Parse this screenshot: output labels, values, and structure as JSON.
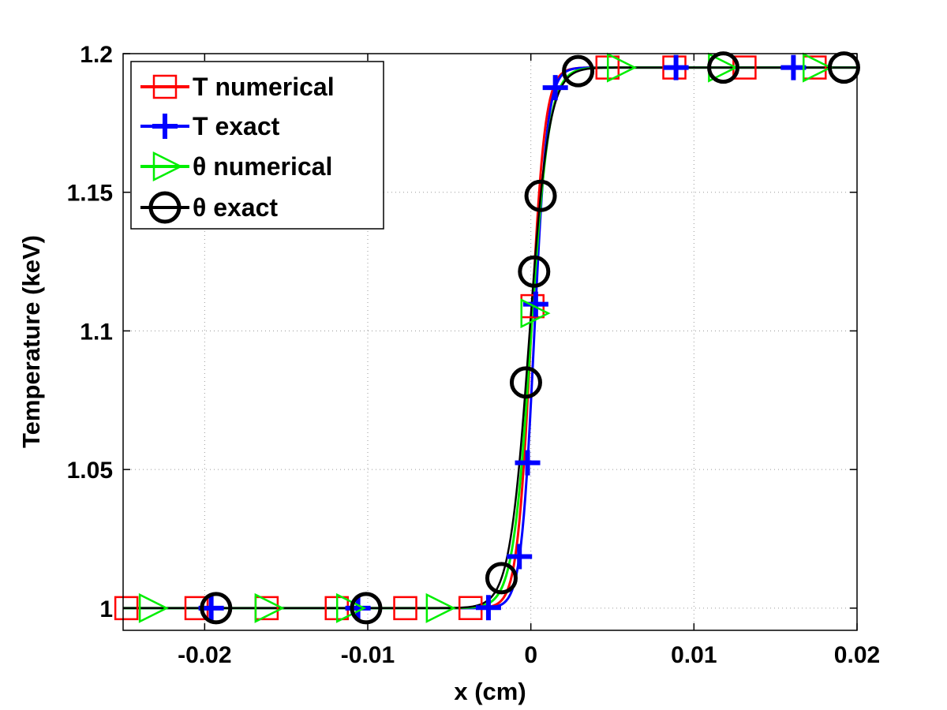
{
  "chart_data": {
    "type": "line",
    "xlabel": "x (cm)",
    "ylabel": "Temperature (keV)",
    "xlim": [
      -0.025,
      0.02
    ],
    "ylim": [
      0.992,
      1.2
    ],
    "xticks": [
      -0.02,
      -0.01,
      0,
      0.01,
      0.02
    ],
    "xtick_labels": [
      "-0.02",
      "-0.01",
      "0",
      "0.01",
      "0.02"
    ],
    "yticks": [
      1.0,
      1.05,
      1.1,
      1.15,
      1.2
    ],
    "ytick_labels": [
      "1",
      "1.05",
      "1.1",
      "1.15",
      "1.2"
    ],
    "grid": true,
    "legend_position": "top-left",
    "series": [
      {
        "name": "T numerical",
        "color": "#ff0000",
        "marker": "square",
        "curve": {
          "low": 1.0,
          "high": 1.195,
          "center": 0.0,
          "width": 0.00085
        },
        "markers_x": [
          -0.0248,
          -0.0205,
          -0.0162,
          -0.0119,
          -0.0077,
          -0.0037,
          0.0001,
          0.0047,
          0.0088,
          0.0131,
          0.0174
        ]
      },
      {
        "name": "T exact",
        "color": "#0000ff",
        "marker": "plus",
        "curve": {
          "low": 1.0,
          "high": 1.195,
          "center": 0.0002,
          "width": 0.0008
        },
        "markers_x": [
          -0.0196,
          -0.0106,
          -0.0026,
          -0.0007,
          -0.0002,
          0.0003,
          0.0015,
          0.0089,
          0.0161
        ]
      },
      {
        "name": "θ numerical",
        "color": "#00ee00",
        "marker": "triangle-right",
        "curve": {
          "low": 1.0,
          "high": 1.195,
          "center": 0.0,
          "width": 0.0011
        },
        "markers_x": [
          -0.0233,
          -0.0162,
          -0.0112,
          -0.0057,
          0.0001,
          0.0054,
          0.0116,
          0.0174
        ]
      },
      {
        "name": "θ exact",
        "color": "#000000",
        "marker": "circle",
        "curve": {
          "low": 1.0,
          "high": 1.195,
          "center": -0.0001,
          "width": 0.0012
        },
        "markers_x": [
          -0.0193,
          -0.0101,
          -0.0018,
          -0.0003,
          0.0002,
          0.0006,
          0.0029,
          0.0118,
          0.0192
        ]
      }
    ]
  }
}
